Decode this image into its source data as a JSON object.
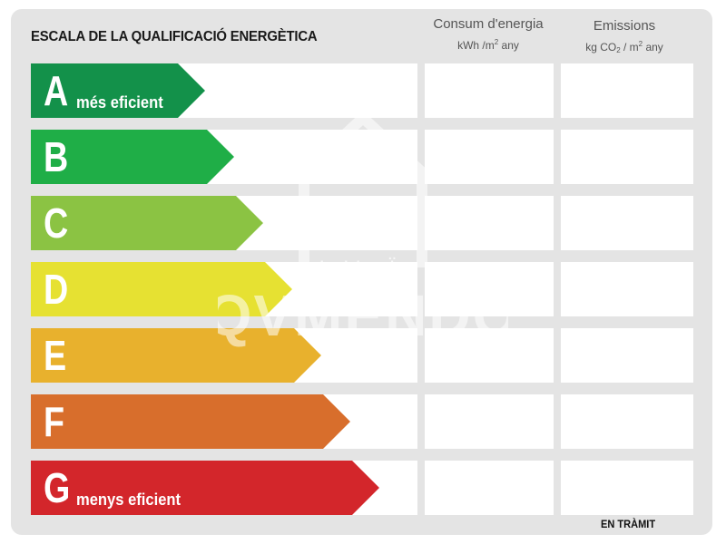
{
  "title": "ESCALA DE LA QUALIFICACIÓ ENERGÈTICA",
  "columns": {
    "consumption": {
      "title": "Consum d'energia",
      "unit_prefix": "kWh /m",
      "unit_exp": "2",
      "unit_suffix": " any"
    },
    "emissions": {
      "title": "Emissions",
      "unit_prefix": "kg CO",
      "unit_sub": "2",
      "unit_mid": " / m",
      "unit_exp": "2",
      "unit_suffix": " any"
    }
  },
  "ratings": [
    {
      "letter": "A",
      "label": "més eficient",
      "color": "#13914a"
    },
    {
      "letter": "B",
      "label": "",
      "color": "#1fae47"
    },
    {
      "letter": "C",
      "label": "",
      "color": "#8bc343"
    },
    {
      "letter": "D",
      "label": "",
      "color": "#e6e132"
    },
    {
      "letter": "E",
      "label": "",
      "color": "#e8b12d"
    },
    {
      "letter": "F",
      "label": "",
      "color": "#d86e2c"
    },
    {
      "letter": "G",
      "label": "menys eficient",
      "color": "#d3262b"
    }
  ],
  "status": "EN TRÀMIT",
  "watermark": {
    "brand": "habitacl̈a",
    "agency": "QVMENDO"
  }
}
